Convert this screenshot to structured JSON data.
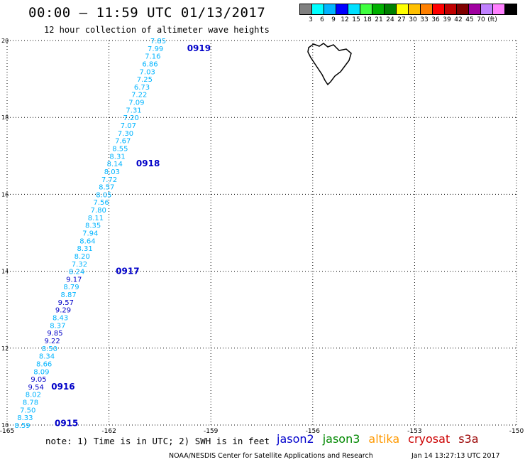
{
  "header": {
    "title": "00:00 – 11:59 UTC 01/13/2017",
    "subtitle": "12 hour collection of altimeter wave heights"
  },
  "colorbar": {
    "colors": [
      "#808080",
      "#00ffff",
      "#00b4ff",
      "#0000ff",
      "#00e0ff",
      "#40ff40",
      "#00b000",
      "#008000",
      "#ffff00",
      "#ffc000",
      "#ff8000",
      "#ff0000",
      "#c00000",
      "#800000",
      "#a000a0",
      "#c080ff",
      "#ff80ff",
      "#000000"
    ],
    "labels": [
      "3",
      "6",
      "9",
      "12",
      "15",
      "18",
      "21",
      "24",
      "27",
      "30",
      "33",
      "36",
      "39",
      "42",
      "45",
      "70",
      "(ft)"
    ]
  },
  "map": {
    "lat_labels": [
      "20",
      "18",
      "16",
      "14",
      "12",
      "10"
    ],
    "lon_labels": [
      "-165",
      "-162",
      "-159",
      "-156",
      "-153",
      "-150"
    ],
    "lat_range": [
      10,
      20
    ],
    "lon_range": [
      -165,
      -150
    ],
    "grid": true,
    "pass_labels": [
      {
        "text": "0919",
        "lat": 19.8,
        "lon": -159.7
      },
      {
        "text": "0918",
        "lat": 16.8,
        "lon": -161.2
      },
      {
        "text": "0917",
        "lat": 14.0,
        "lon": -161.8
      },
      {
        "text": "0916",
        "lat": 11.0,
        "lon": -163.7
      },
      {
        "text": "0915",
        "lat": 10.05,
        "lon": -163.6
      }
    ],
    "track": [
      {
        "v": "7.85",
        "lat": 20.0,
        "lon": -160.55,
        "c": "light"
      },
      {
        "v": "7.99",
        "lat": 19.8,
        "lon": -160.63,
        "c": "light"
      },
      {
        "v": "7.16",
        "lat": 19.6,
        "lon": -160.71,
        "c": "light"
      },
      {
        "v": "6.86",
        "lat": 19.4,
        "lon": -160.79,
        "c": "light"
      },
      {
        "v": "7.03",
        "lat": 19.2,
        "lon": -160.87,
        "c": "light"
      },
      {
        "v": "7.25",
        "lat": 19.0,
        "lon": -160.95,
        "c": "light"
      },
      {
        "v": "6.73",
        "lat": 18.8,
        "lon": -161.03,
        "c": "light"
      },
      {
        "v": "7.22",
        "lat": 18.6,
        "lon": -161.11,
        "c": "light"
      },
      {
        "v": "7.09",
        "lat": 18.4,
        "lon": -161.19,
        "c": "light"
      },
      {
        "v": "7.31",
        "lat": 18.2,
        "lon": -161.27,
        "c": "light"
      },
      {
        "v": "7.20",
        "lat": 18.0,
        "lon": -161.35,
        "c": "light"
      },
      {
        "v": "7.07",
        "lat": 17.8,
        "lon": -161.43,
        "c": "light"
      },
      {
        "v": "7.30",
        "lat": 17.6,
        "lon": -161.51,
        "c": "light"
      },
      {
        "v": "7.67",
        "lat": 17.4,
        "lon": -161.59,
        "c": "light"
      },
      {
        "v": "8.55",
        "lat": 17.2,
        "lon": -161.67,
        "c": "light"
      },
      {
        "v": "8.31",
        "lat": 17.0,
        "lon": -161.75,
        "c": "light"
      },
      {
        "v": "8.14",
        "lat": 16.8,
        "lon": -161.83,
        "c": "light"
      },
      {
        "v": "8.03",
        "lat": 16.6,
        "lon": -161.91,
        "c": "light"
      },
      {
        "v": "7.72",
        "lat": 16.4,
        "lon": -161.99,
        "c": "light"
      },
      {
        "v": "8.57",
        "lat": 16.2,
        "lon": -162.07,
        "c": "light"
      },
      {
        "v": "8.05",
        "lat": 16.0,
        "lon": -162.15,
        "c": "light"
      },
      {
        "v": "7.56",
        "lat": 15.8,
        "lon": -162.23,
        "c": "light"
      },
      {
        "v": "7.80",
        "lat": 15.6,
        "lon": -162.31,
        "c": "light"
      },
      {
        "v": "8.11",
        "lat": 15.4,
        "lon": -162.39,
        "c": "light"
      },
      {
        "v": "8.35",
        "lat": 15.2,
        "lon": -162.47,
        "c": "light"
      },
      {
        "v": "7.94",
        "lat": 15.0,
        "lon": -162.55,
        "c": "light"
      },
      {
        "v": "8.64",
        "lat": 14.8,
        "lon": -162.63,
        "c": "light"
      },
      {
        "v": "8.31",
        "lat": 14.6,
        "lon": -162.71,
        "c": "light"
      },
      {
        "v": "8.20",
        "lat": 14.4,
        "lon": -162.79,
        "c": "light"
      },
      {
        "v": "7.32",
        "lat": 14.2,
        "lon": -162.87,
        "c": "light"
      },
      {
        "v": "8.24",
        "lat": 14.0,
        "lon": -162.95,
        "c": "light"
      },
      {
        "v": "9.17",
        "lat": 13.8,
        "lon": -163.03,
        "c": "dark"
      },
      {
        "v": "8.79",
        "lat": 13.6,
        "lon": -163.11,
        "c": "light"
      },
      {
        "v": "8.87",
        "lat": 13.4,
        "lon": -163.19,
        "c": "light"
      },
      {
        "v": "9.57",
        "lat": 13.2,
        "lon": -163.27,
        "c": "dark"
      },
      {
        "v": "9.29",
        "lat": 13.0,
        "lon": -163.35,
        "c": "dark"
      },
      {
        "v": "8.43",
        "lat": 12.8,
        "lon": -163.43,
        "c": "light"
      },
      {
        "v": "8.37",
        "lat": 12.6,
        "lon": -163.51,
        "c": "light"
      },
      {
        "v": "9.85",
        "lat": 12.4,
        "lon": -163.59,
        "c": "dark"
      },
      {
        "v": "9.22",
        "lat": 12.2,
        "lon": -163.67,
        "c": "dark"
      },
      {
        "v": "8.50",
        "lat": 12.0,
        "lon": -163.75,
        "c": "light"
      },
      {
        "v": "8.34",
        "lat": 11.8,
        "lon": -163.83,
        "c": "light"
      },
      {
        "v": "8.66",
        "lat": 11.6,
        "lon": -163.91,
        "c": "light"
      },
      {
        "v": "8.09",
        "lat": 11.4,
        "lon": -163.99,
        "c": "light"
      },
      {
        "v": "9.05",
        "lat": 11.2,
        "lon": -164.07,
        "c": "dark"
      },
      {
        "v": "9.54",
        "lat": 11.0,
        "lon": -164.15,
        "c": "dark"
      },
      {
        "v": "8.02",
        "lat": 10.8,
        "lon": -164.23,
        "c": "light"
      },
      {
        "v": "8.78",
        "lat": 10.6,
        "lon": -164.31,
        "c": "light"
      },
      {
        "v": "7.50",
        "lat": 10.4,
        "lon": -164.39,
        "c": "light"
      },
      {
        "v": "8.33",
        "lat": 10.2,
        "lon": -164.47,
        "c": "light"
      },
      {
        "v": "8.59",
        "lat": 10.0,
        "lon": -164.55,
        "c": "light"
      }
    ],
    "colors": {
      "light": "#00b4ff",
      "dark": "#0000c8",
      "pass": "#0000c8"
    }
  },
  "footer": {
    "note": "note: 1) Time is in UTC; 2) SWH is in feet",
    "legend": [
      {
        "text": "jason2",
        "color": "#0000cc"
      },
      {
        "text": "jason3",
        "color": "#008800"
      },
      {
        "text": "altika",
        "color": "#ff9900"
      },
      {
        "text": "cryosat",
        "color": "#cc0000"
      },
      {
        "text": "s3a",
        "color": "#990000"
      }
    ],
    "credit": "NOAA/NESDIS Center for Satellite Applications and Research",
    "timestamp": "Jan 14 13:27:13 UTC 2017"
  }
}
